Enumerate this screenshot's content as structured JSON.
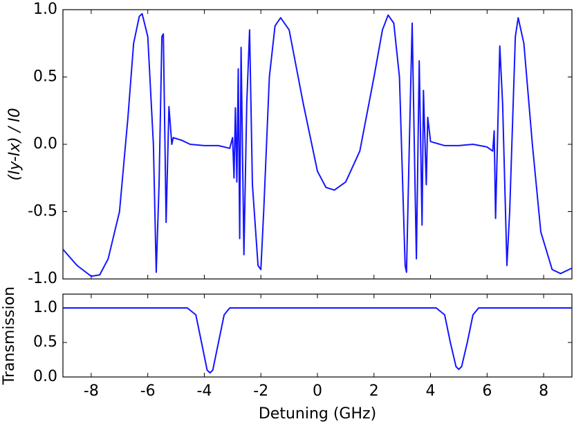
{
  "chart_data": [
    {
      "type": "line",
      "ylabel": "(Iy-Ix) / I0",
      "x": [
        -9,
        -8.5,
        -8,
        -7.7,
        -7.4,
        -7,
        -6.7,
        -6.5,
        -6.3,
        -6.2,
        -6.0,
        -5.8,
        -5.7,
        -5.6,
        -5.5,
        -5.45,
        -5.35,
        -5.25,
        -5.15,
        -5.1,
        -4.8,
        -4.5,
        -4,
        -3.5,
        -3.1,
        -3.0,
        -2.95,
        -2.9,
        -2.85,
        -2.8,
        -2.75,
        -2.7,
        -2.6,
        -2.5,
        -2.4,
        -2.3,
        -2.1,
        -2.0,
        -1.9,
        -1.7,
        -1.5,
        -1.3,
        -1.0,
        -0.5,
        0,
        0.3,
        0.6,
        1.0,
        1.5,
        2.0,
        2.3,
        2.5,
        2.7,
        2.9,
        3.1,
        3.15,
        3.25,
        3.35,
        3.45,
        3.5,
        3.6,
        3.7,
        3.75,
        3.85,
        3.9,
        4.0,
        4.5,
        5.0,
        5.5,
        6.0,
        6.2,
        6.25,
        6.3,
        6.45,
        6.55,
        6.7,
        6.8,
        7.0,
        7.1,
        7.3,
        7.6,
        7.9,
        8.3,
        8.6,
        9.0
      ],
      "series": [
        {
          "color": "#1414ff",
          "values": [
            -0.78,
            -0.9,
            -0.98,
            -0.97,
            -0.85,
            -0.5,
            0.2,
            0.75,
            0.95,
            0.97,
            0.8,
            0.0,
            -0.95,
            -0.3,
            0.8,
            0.82,
            -0.58,
            0.28,
            0.0,
            0.05,
            0.03,
            0.0,
            -0.01,
            -0.01,
            -0.03,
            0.05,
            -0.25,
            0.27,
            -0.28,
            0.56,
            -0.7,
            0.72,
            -0.82,
            0.3,
            0.85,
            -0.3,
            -0.9,
            -0.93,
            -0.5,
            0.5,
            0.88,
            0.94,
            0.85,
            0.3,
            -0.2,
            -0.32,
            -0.34,
            -0.28,
            -0.05,
            0.5,
            0.85,
            0.96,
            0.9,
            0.5,
            -0.9,
            -0.95,
            0.0,
            0.9,
            -0.3,
            -0.85,
            0.62,
            -0.6,
            0.4,
            -0.3,
            0.2,
            0.02,
            -0.01,
            -0.01,
            0.0,
            -0.02,
            -0.05,
            0.1,
            -0.55,
            0.73,
            0.3,
            -0.9,
            -0.5,
            0.8,
            0.94,
            0.75,
            0.0,
            -0.65,
            -0.93,
            -0.96,
            -0.92
          ]
        }
      ],
      "xlim": [
        -9,
        9
      ],
      "xticks": [
        -8,
        -6,
        -4,
        -2,
        0,
        2,
        4,
        6,
        8
      ],
      "ylim": [
        -1,
        1
      ],
      "yticks": [
        {
          "value": -1,
          "label": "-1.0"
        },
        {
          "value": -0.5,
          "label": "-0.5"
        },
        {
          "value": 0,
          "label": "0.0"
        },
        {
          "value": 0.5,
          "label": "0.5"
        },
        {
          "value": 1,
          "label": "1.0"
        }
      ]
    },
    {
      "type": "line",
      "ylabel": "Transmission",
      "xlabel": "Detuning (GHz)",
      "x": [
        -9,
        -4.6,
        -4.3,
        -4.1,
        -3.9,
        -3.8,
        -3.7,
        -3.5,
        -3.3,
        -3.1,
        4.2,
        4.5,
        4.7,
        4.9,
        5.0,
        5.1,
        5.3,
        5.5,
        5.7,
        9
      ],
      "series": [
        {
          "color": "#1414ff",
          "values": [
            1,
            1,
            0.9,
            0.5,
            0.1,
            0.06,
            0.1,
            0.5,
            0.9,
            1,
            1,
            0.9,
            0.5,
            0.15,
            0.11,
            0.15,
            0.5,
            0.9,
            1,
            1
          ]
        }
      ],
      "xlim": [
        -9,
        9
      ],
      "xticks": [
        -8,
        -6,
        -4,
        -2,
        0,
        2,
        4,
        6,
        8
      ],
      "ylim": [
        0,
        1.2
      ],
      "yticks": [
        {
          "value": 0,
          "label": "0.0"
        },
        {
          "value": 0.5,
          "label": "0.5"
        },
        {
          "value": 1,
          "label": "1.0"
        }
      ]
    }
  ]
}
